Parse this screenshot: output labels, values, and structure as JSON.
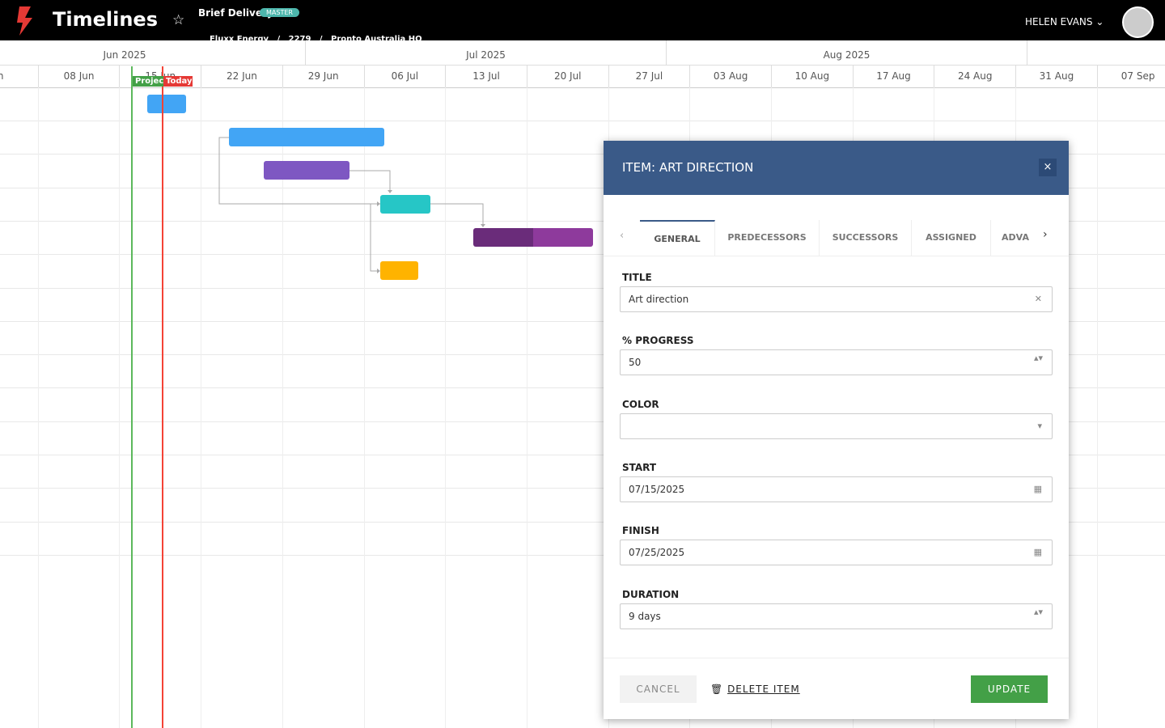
{
  "header": {
    "app_title": "Timelines",
    "project": "Brief Delivery",
    "badge": "MASTER",
    "breadcrumb": [
      "Fluxx Energy",
      "2279",
      "Pronto Australia HQ"
    ],
    "separator": "/",
    "user": "HELEN EVANS"
  },
  "timeline": {
    "months": [
      "Jun 2025",
      "Jul 2025",
      "Aug 2025"
    ],
    "weeks": [
      "un",
      "08 Jun",
      "15 Jun",
      "22 Jun",
      "29 Jun",
      "06 Jul",
      "13 Jul",
      "20 Jul",
      "27 Jul",
      "03 Aug",
      "10 Aug",
      "17 Aug",
      "24 Aug",
      "31 Aug",
      "07 Sep"
    ],
    "markers": {
      "project": "Project",
      "today": "Today"
    }
  },
  "dialog": {
    "title": "ITEM: ART DIRECTION",
    "tabs": [
      "GENERAL",
      "PREDECESSORS",
      "SUCCESSORS",
      "ASSIGNED",
      "ADVA"
    ],
    "fields": [
      {
        "label": "TITLE",
        "value": "Art direction"
      },
      {
        "label": "% PROGRESS",
        "value": "50"
      },
      {
        "label": "COLOR"
      },
      {
        "label": "START",
        "value": "07/15/2025"
      },
      {
        "label": "FINISH",
        "value": "07/25/2025"
      },
      {
        "label": "DURATION",
        "value": "9 days"
      }
    ],
    "buttons": {
      "cancel": "CANCEL",
      "delete": "DELETE ITEM",
      "update": "UPDATE"
    }
  }
}
